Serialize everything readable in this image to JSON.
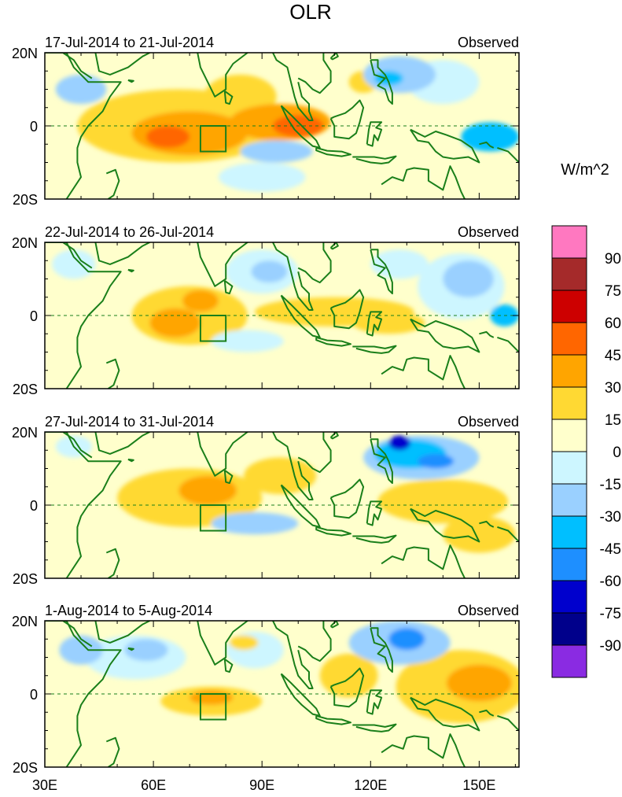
{
  "figure": {
    "title": "OLR",
    "units": "W/m^2",
    "x_ticks": [
      "30E",
      "60E",
      "90E",
      "120E",
      "150E"
    ],
    "y_ticks": [
      "20N",
      "0",
      "20S"
    ],
    "region_box": "Indian Ocean target box (~73E-80E, 0-7S)"
  },
  "panels": [
    {
      "period": "17-Jul-2014 to 21-Jul-2014",
      "label": "Observed",
      "anomalies": [
        {
          "lon": 70,
          "lat": -2,
          "rx": 16,
          "ry": 6,
          "level": 2
        },
        {
          "lon": 64,
          "lat": -3,
          "rx": 6,
          "ry": 3,
          "level": 3
        },
        {
          "lon": 95,
          "lat": 1,
          "rx": 14,
          "ry": 5,
          "level": 2
        },
        {
          "lon": 100,
          "lat": 0,
          "rx": 7,
          "ry": 3,
          "level": 3
        },
        {
          "lon": 67,
          "lat": 0,
          "rx": 28,
          "ry": 10,
          "level": 1
        },
        {
          "lon": 84,
          "lat": 8,
          "rx": 10,
          "ry": 6,
          "level": 1
        },
        {
          "lon": 118,
          "lat": 12,
          "rx": 4,
          "ry": 3,
          "level": 1
        },
        {
          "lon": 128,
          "lat": 14,
          "rx": 10,
          "ry": 5,
          "level": -2
        },
        {
          "lon": 125,
          "lat": 13,
          "rx": 4,
          "ry": 2,
          "level": -3
        },
        {
          "lon": 94,
          "lat": -7,
          "rx": 10,
          "ry": 3,
          "level": -2
        },
        {
          "lon": 153,
          "lat": -3,
          "rx": 8,
          "ry": 4,
          "level": -3
        },
        {
          "lon": 40,
          "lat": 10,
          "rx": 7,
          "ry": 4,
          "level": -2
        },
        {
          "lon": 140,
          "lat": 12,
          "rx": 10,
          "ry": 6,
          "level": -1
        },
        {
          "lon": 90,
          "lat": -14,
          "rx": 12,
          "ry": 4,
          "level": -1
        }
      ]
    },
    {
      "period": "22-Jul-2014 to 26-Jul-2014",
      "label": "Observed",
      "anomalies": [
        {
          "lon": 70,
          "lat": 0,
          "rx": 16,
          "ry": 8,
          "level": 1
        },
        {
          "lon": 66,
          "lat": -2,
          "rx": 7,
          "ry": 4,
          "level": 2
        },
        {
          "lon": 73,
          "lat": 4,
          "rx": 5,
          "ry": 3,
          "level": 2
        },
        {
          "lon": 110,
          "lat": 1,
          "rx": 22,
          "ry": 4,
          "level": 1
        },
        {
          "lon": 125,
          "lat": -2,
          "rx": 10,
          "ry": 3,
          "level": 1
        },
        {
          "lon": 90,
          "lat": 12,
          "rx": 10,
          "ry": 6,
          "level": -1
        },
        {
          "lon": 92,
          "lat": 12,
          "rx": 5,
          "ry": 3,
          "level": -2
        },
        {
          "lon": 145,
          "lat": 8,
          "rx": 12,
          "ry": 9,
          "level": -1
        },
        {
          "lon": 147,
          "lat": 10,
          "rx": 7,
          "ry": 5,
          "level": -2
        },
        {
          "lon": 157,
          "lat": 0,
          "rx": 4,
          "ry": 3,
          "level": -3
        },
        {
          "lon": 86,
          "lat": -7,
          "rx": 10,
          "ry": 3,
          "level": -1
        },
        {
          "lon": 38,
          "lat": 14,
          "rx": 6,
          "ry": 4,
          "level": -1
        },
        {
          "lon": 128,
          "lat": 14,
          "rx": 8,
          "ry": 4,
          "level": -1
        }
      ]
    },
    {
      "period": "27-Jul-2014 to 31-Jul-2014",
      "label": "Observed",
      "anomalies": [
        {
          "lon": 70,
          "lat": 2,
          "rx": 20,
          "ry": 8,
          "level": 1
        },
        {
          "lon": 75,
          "lat": 4,
          "rx": 8,
          "ry": 4,
          "level": 2
        },
        {
          "lon": 95,
          "lat": 8,
          "rx": 10,
          "ry": 5,
          "level": 1
        },
        {
          "lon": 140,
          "lat": 1,
          "rx": 18,
          "ry": 6,
          "level": 1
        },
        {
          "lon": 134,
          "lat": 13,
          "rx": 16,
          "ry": 6,
          "level": -2
        },
        {
          "lon": 131,
          "lat": 14,
          "rx": 10,
          "ry": 4,
          "level": -3
        },
        {
          "lon": 138,
          "lat": 12,
          "rx": 5,
          "ry": 2,
          "level": -4
        },
        {
          "lon": 128,
          "lat": 17,
          "rx": 3,
          "ry": 2,
          "level": -5
        },
        {
          "lon": 88,
          "lat": -5,
          "rx": 12,
          "ry": 3,
          "level": -2
        },
        {
          "lon": 38,
          "lat": 16,
          "rx": 5,
          "ry": 3,
          "level": -1
        },
        {
          "lon": 150,
          "lat": -8,
          "rx": 10,
          "ry": 5,
          "level": 1
        }
      ]
    },
    {
      "period": "1-Aug-2014 to 5-Aug-2014",
      "label": "Observed",
      "anomalies": [
        {
          "lon": 76,
          "lat": -2,
          "rx": 14,
          "ry": 4,
          "level": 1
        },
        {
          "lon": 76,
          "lat": -1,
          "rx": 6,
          "ry": 2,
          "level": 2
        },
        {
          "lon": 145,
          "lat": 2,
          "rx": 18,
          "ry": 10,
          "level": 1
        },
        {
          "lon": 150,
          "lat": 3,
          "rx": 9,
          "ry": 5,
          "level": 2
        },
        {
          "lon": 128,
          "lat": 14,
          "rx": 14,
          "ry": 6,
          "level": -2
        },
        {
          "lon": 130,
          "lat": 15,
          "rx": 5,
          "ry": 3,
          "level": -4
        },
        {
          "lon": 55,
          "lat": 10,
          "rx": 14,
          "ry": 6,
          "level": -1
        },
        {
          "lon": 58,
          "lat": 12,
          "rx": 6,
          "ry": 3,
          "level": -2
        },
        {
          "lon": 88,
          "lat": 12,
          "rx": 8,
          "ry": 5,
          "level": -1
        },
        {
          "lon": 85,
          "lat": 14,
          "rx": 4,
          "ry": 2,
          "level": 1
        },
        {
          "lon": 114,
          "lat": 5,
          "rx": 8,
          "ry": 6,
          "level": 1
        },
        {
          "lon": 40,
          "lat": 12,
          "rx": 6,
          "ry": 4,
          "level": -2
        }
      ]
    }
  ],
  "colorbar": {
    "labels": [
      "90",
      "75",
      "60",
      "45",
      "30",
      "15",
      "0",
      "-15",
      "-30",
      "-45",
      "-60",
      "-75",
      "-90"
    ],
    "colors": [
      "#ff78c0",
      "#a52a2a",
      "#cd0000",
      "#ff6600",
      "#ffa500",
      "#ffd933",
      "#ffffcc",
      "#cdf6ff",
      "#9ad0ff",
      "#00bfff",
      "#1e8fff",
      "#0000cd",
      "#00008b",
      "#8a2be2"
    ]
  }
}
